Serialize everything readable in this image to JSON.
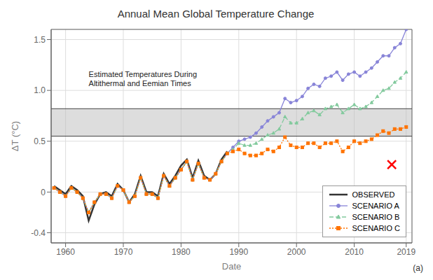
{
  "chart_data": {
    "type": "line",
    "title": "Annual Mean Global Temperature Change",
    "x_label": "Date",
    "y_label": "ΔT (°C)",
    "xlim": [
      1957.5,
      2020
    ],
    "ylim": [
      -0.5,
      1.6
    ],
    "xticks": [
      1960,
      1970,
      1980,
      1990,
      2000,
      2010,
      2019
    ],
    "yticks": [
      -0.4,
      0,
      0.5,
      {
        "value": 1,
        "label": "1.0"
      },
      1.5
    ],
    "grid": true,
    "legend": "lower right",
    "band": [
      0.55,
      0.82
    ],
    "band_lines": [
      0.55,
      0.82
    ],
    "markers": [
      {
        "x": 2016.5,
        "y": 0.27,
        "color": "red",
        "marker": "x"
      }
    ],
    "annotations": [
      {
        "text": "Estimated Temperatures During\nAltithermal and Eemian Times",
        "x": 1964,
        "y": 1.2
      },
      {
        "text": "(a)"
      }
    ],
    "x": [
      1958,
      1959,
      1960,
      1961,
      1962,
      1963,
      1964,
      1965,
      1966,
      1967,
      1968,
      1969,
      1970,
      1971,
      1972,
      1973,
      1974,
      1975,
      1976,
      1977,
      1978,
      1979,
      1980,
      1981,
      1982,
      1983,
      1984,
      1985,
      1986,
      1987,
      1988,
      1989,
      1990,
      1991,
      1992,
      1993,
      1994,
      1995,
      1996,
      1997,
      1998,
      1999,
      2000,
      2001,
      2002,
      2003,
      2004,
      2005,
      2006,
      2007,
      2008,
      2009,
      2010,
      2011,
      2012,
      2013,
      2014,
      2015,
      2016,
      2017,
      2018,
      2019
    ],
    "series": [
      {
        "name": "OBSERVED",
        "color": "#333333",
        "line_style": "solid",
        "marker": "none",
        "values": [
          0.06,
          0.02,
          -0.02,
          0.06,
          0.02,
          -0.04,
          -0.28,
          -0.12,
          -0.02,
          0.0,
          -0.04,
          0.08,
          0.02,
          -0.1,
          -0.02,
          0.16,
          0.0,
          0.0,
          -0.04,
          0.18,
          0.08,
          0.16,
          0.26,
          0.32,
          0.14,
          0.31,
          0.16,
          0.12,
          0.18,
          0.32,
          0.4,
          null,
          null,
          null,
          null,
          null,
          null,
          null,
          null,
          null,
          null,
          null,
          null,
          null,
          null,
          null,
          null,
          null,
          null,
          null,
          null,
          null,
          null,
          null,
          null,
          null,
          null,
          null,
          null,
          null,
          null,
          null
        ]
      },
      {
        "name": "SCENARIO A",
        "color": "#8884d8",
        "line_style": "solid",
        "marker": "circle",
        "values": [
          0.04,
          0.0,
          -0.04,
          0.04,
          0.0,
          -0.06,
          -0.2,
          -0.1,
          -0.02,
          -0.02,
          -0.06,
          0.06,
          0.02,
          -0.1,
          -0.04,
          0.14,
          -0.02,
          -0.02,
          -0.06,
          0.16,
          0.06,
          0.14,
          0.22,
          0.3,
          0.12,
          0.28,
          0.14,
          0.12,
          0.18,
          0.3,
          0.38,
          0.44,
          0.5,
          0.52,
          0.54,
          0.58,
          0.64,
          0.7,
          0.74,
          0.78,
          0.92,
          0.88,
          0.9,
          0.94,
          1.02,
          1.06,
          1.04,
          1.12,
          1.14,
          1.18,
          1.1,
          1.16,
          1.18,
          1.14,
          1.18,
          1.22,
          1.28,
          1.34,
          1.34,
          1.42,
          1.46,
          1.6
        ]
      },
      {
        "name": "SCENARIO B",
        "color": "#82ca9d",
        "line_style": "dashed",
        "marker": "triangle",
        "values": [
          0.04,
          0.0,
          -0.04,
          0.04,
          0.0,
          -0.06,
          -0.2,
          -0.1,
          -0.02,
          -0.02,
          -0.06,
          0.06,
          0.02,
          -0.1,
          -0.04,
          0.14,
          -0.02,
          -0.02,
          -0.06,
          0.16,
          0.06,
          0.14,
          0.22,
          0.3,
          0.12,
          0.28,
          0.14,
          0.12,
          0.18,
          0.3,
          0.38,
          0.42,
          0.48,
          0.46,
          0.46,
          0.48,
          0.52,
          0.56,
          0.58,
          0.62,
          0.74,
          0.68,
          0.68,
          0.72,
          0.78,
          0.8,
          0.76,
          0.82,
          0.84,
          0.86,
          0.78,
          0.82,
          0.86,
          0.82,
          0.84,
          0.88,
          0.94,
          1.0,
          1.02,
          1.08,
          1.12,
          1.18
        ]
      },
      {
        "name": "SCENARIO C",
        "color": "#ff7300",
        "line_style": "dotted",
        "marker": "square",
        "values": [
          0.04,
          0.0,
          -0.04,
          0.04,
          0.0,
          -0.06,
          -0.2,
          -0.1,
          -0.02,
          -0.02,
          -0.06,
          0.06,
          0.02,
          -0.1,
          -0.04,
          0.14,
          -0.02,
          -0.02,
          -0.06,
          0.16,
          0.06,
          0.14,
          0.22,
          0.3,
          0.12,
          0.28,
          0.14,
          0.12,
          0.18,
          0.3,
          0.38,
          0.4,
          0.42,
          0.38,
          0.36,
          0.36,
          0.38,
          0.42,
          0.4,
          0.44,
          0.54,
          0.46,
          0.44,
          0.44,
          0.48,
          0.48,
          0.44,
          0.48,
          0.48,
          0.5,
          0.4,
          0.44,
          0.5,
          0.48,
          0.5,
          0.52,
          0.56,
          0.6,
          0.58,
          0.62,
          0.62,
          0.64
        ]
      }
    ]
  }
}
